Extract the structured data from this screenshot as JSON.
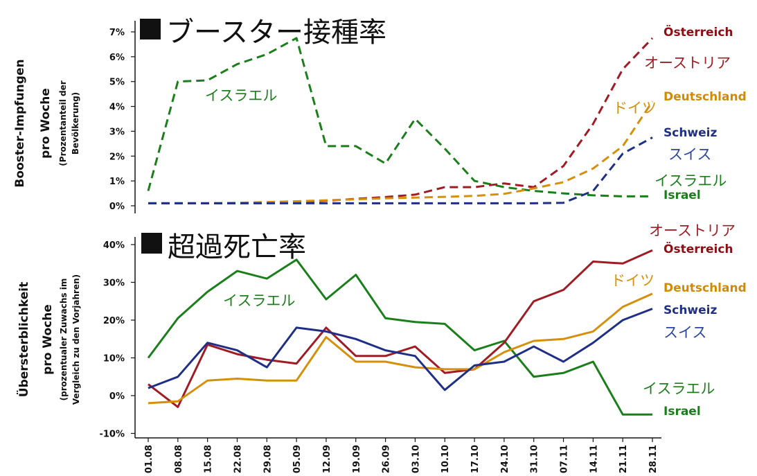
{
  "colors": {
    "austria": "#a01c24",
    "germany": "#d4900b",
    "switzerland": "#1f2f86",
    "israel": "#1a7f1a",
    "axis": "#111111"
  },
  "chart_data": [
    {
      "type": "line",
      "title": "ブースター接種率",
      "ylabel": "Booster-Impfungen pro Woche",
      "ylabel_sub": "(Prozentanteil der Bevölkerung)",
      "y_unit": "%",
      "ylim": [
        0,
        7
      ],
      "yticks": [
        0,
        1,
        2,
        3,
        4,
        5,
        6,
        7
      ],
      "ytick_labels": [
        "0%",
        "1%",
        "2%",
        "3%",
        "4%",
        "5%",
        "6%",
        "7%"
      ],
      "line_style": "dashed",
      "grid": false,
      "series": [
        {
          "key": "israel",
          "name": "Israel",
          "name_ja": "イスラエル",
          "values": [
            0.6,
            5.0,
            5.05,
            5.7,
            6.1,
            6.75,
            2.4,
            2.4,
            1.7,
            3.5,
            2.3,
            1.0,
            0.75,
            0.6,
            0.5,
            0.42,
            0.38,
            0.38
          ]
        },
        {
          "key": "austria",
          "name": "Österreich",
          "name_ja": "オーストリア",
          "values": [
            0.1,
            0.1,
            0.1,
            0.1,
            0.13,
            0.15,
            0.2,
            0.28,
            0.35,
            0.45,
            0.75,
            0.75,
            0.9,
            0.75,
            1.6,
            3.3,
            5.5,
            6.75
          ]
        },
        {
          "key": "germany",
          "name": "Deutschland",
          "name_ja": "ドイツ",
          "values": [
            0.1,
            0.1,
            0.1,
            0.12,
            0.15,
            0.18,
            0.22,
            0.26,
            0.3,
            0.33,
            0.36,
            0.4,
            0.48,
            0.7,
            0.95,
            1.5,
            2.4,
            4.2
          ]
        },
        {
          "key": "switzerland",
          "name": "Schweiz",
          "name_ja": "スイス",
          "values": [
            0.1,
            0.1,
            0.1,
            0.1,
            0.1,
            0.1,
            0.1,
            0.1,
            0.1,
            0.1,
            0.1,
            0.1,
            0.1,
            0.1,
            0.12,
            0.6,
            2.1,
            2.75
          ]
        }
      ]
    },
    {
      "type": "line",
      "title": "超過死亡率",
      "ylabel": "Übersterblichkeit pro Woche",
      "ylabel_sub": "(prozentualer Zuwachs im Vergleich zu den Vorjahren)",
      "y_unit": "%",
      "ylim": [
        -10,
        40
      ],
      "yticks": [
        -10,
        0,
        10,
        20,
        30,
        40
      ],
      "ytick_labels": [
        "-10%",
        "0%",
        "10%",
        "20%",
        "30%",
        "40%"
      ],
      "line_style": "solid",
      "grid": false,
      "x": [
        "01.08",
        "08.08",
        "15.08",
        "22.08",
        "29.08",
        "05.09",
        "12.09",
        "19.09",
        "26.09",
        "03.10",
        "10.10",
        "17.10",
        "24.10",
        "31.10",
        "07.11",
        "14.11",
        "21.11",
        "28.11"
      ],
      "series": [
        {
          "key": "israel",
          "name": "Israel",
          "name_ja": "イスラエル",
          "values": [
            10,
            20.5,
            27.5,
            33,
            31,
            36,
            25.5,
            32,
            20.5,
            19.5,
            19,
            12,
            14.5,
            5,
            6,
            9,
            -5,
            -5
          ]
        },
        {
          "key": "austria",
          "name": "Österreich",
          "name_ja": "オーストリア",
          "values": [
            3,
            -3,
            13.5,
            11,
            9.5,
            8.5,
            18,
            10.5,
            10.5,
            13,
            6,
            7,
            14,
            25,
            28,
            35.5,
            35,
            38.5
          ]
        },
        {
          "key": "germany",
          "name": "Deutschland",
          "name_ja": "ドイツ",
          "values": [
            -2,
            -1.5,
            4,
            4.5,
            4,
            4,
            15.5,
            9,
            9,
            7.5,
            7,
            7,
            11.5,
            14.5,
            15,
            17,
            23.5,
            27
          ]
        },
        {
          "key": "switzerland",
          "name": "Schweiz",
          "name_ja": "スイス",
          "values": [
            2,
            5,
            14,
            12,
            7.5,
            18,
            17,
            15,
            12,
            10.5,
            1.5,
            8,
            9,
            13,
            9,
            14,
            20,
            23
          ]
        }
      ]
    }
  ]
}
